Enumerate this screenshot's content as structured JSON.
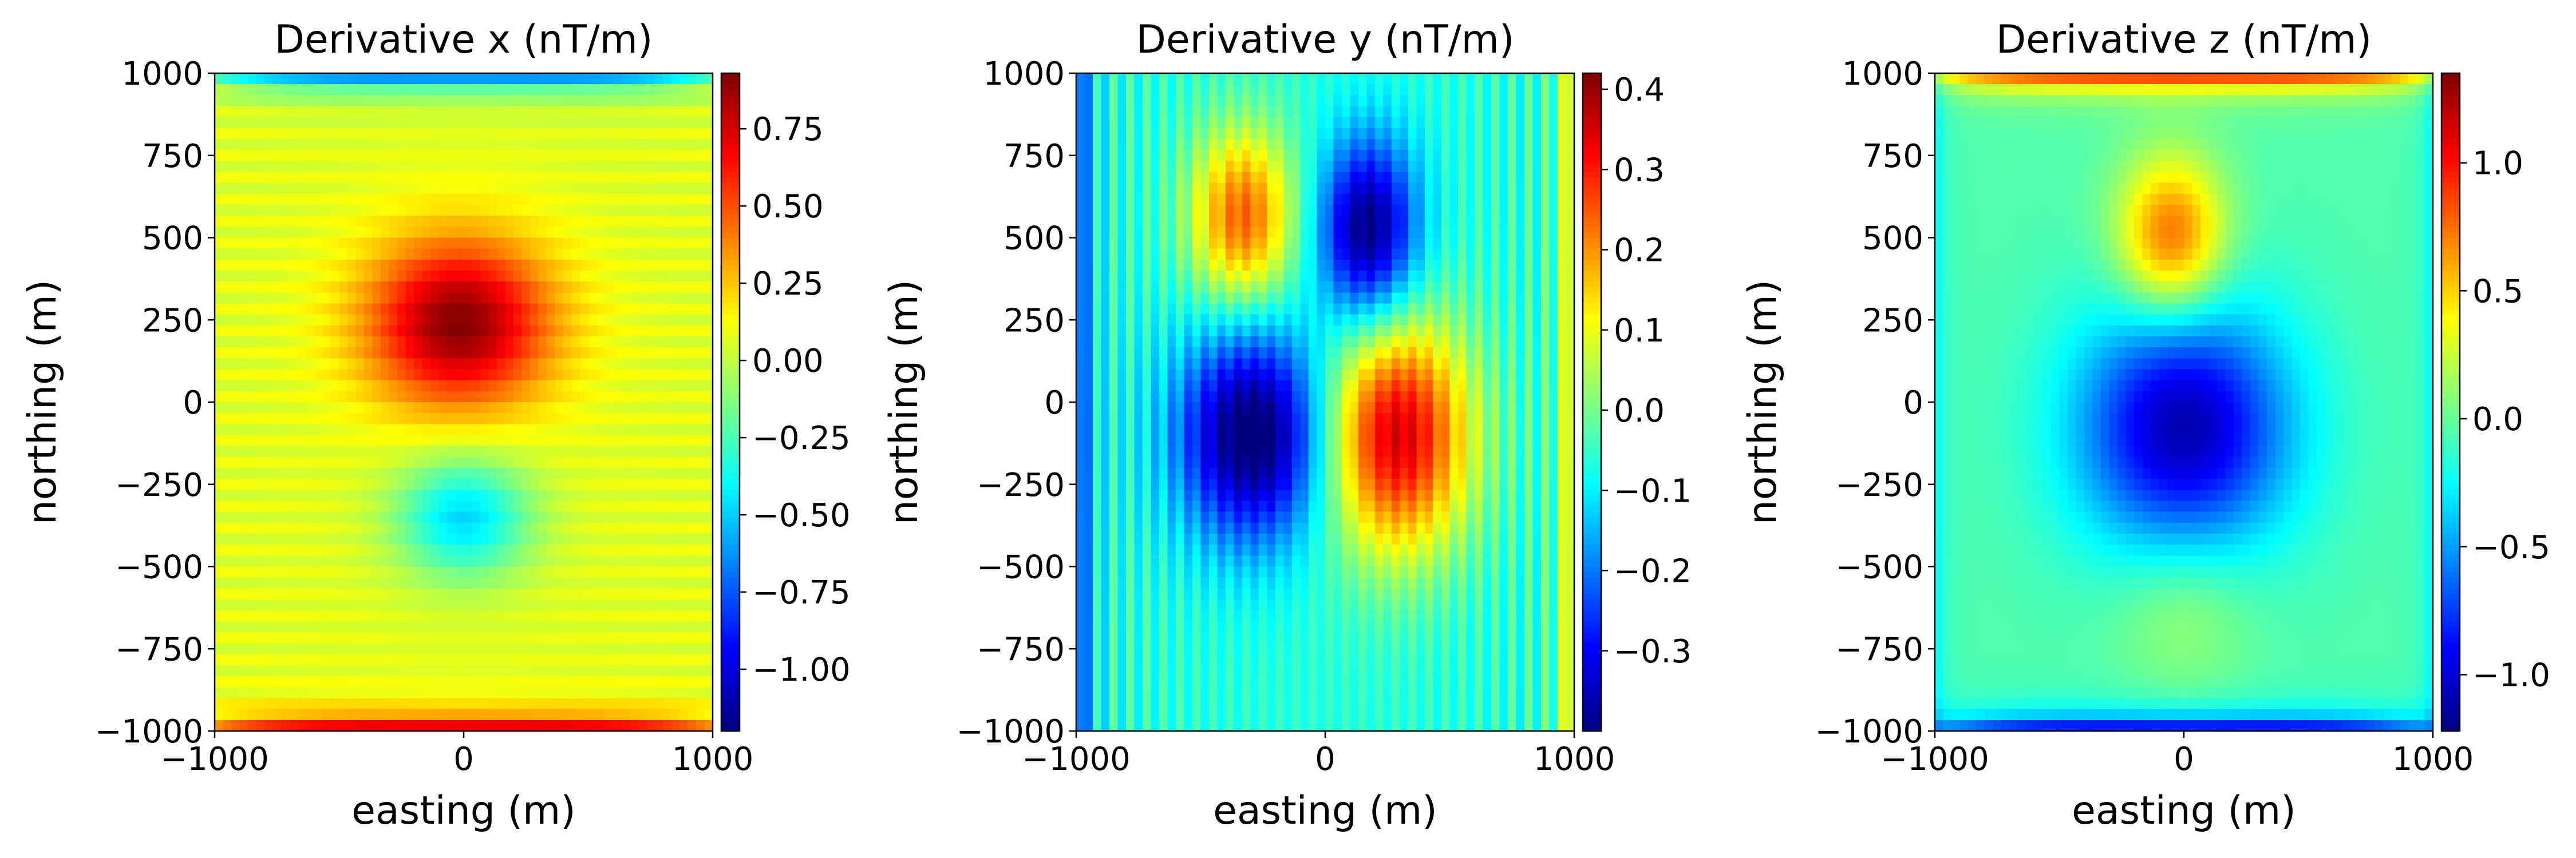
{
  "chart_data": [
    {
      "type": "heatmap",
      "title": "Derivative x (nT/m)",
      "xlabel": "easting (m)",
      "ylabel": "northing (m)",
      "xlim": [
        -1000,
        1000
      ],
      "ylim": [
        -1000,
        1000
      ],
      "xticks": [
        "−1000",
        "0",
        "1000"
      ],
      "xtick_values": [
        -1000,
        0,
        1000
      ],
      "yticks": [
        "1000",
        "750",
        "500",
        "250",
        "0",
        "−250",
        "−500",
        "−750",
        "−1000"
      ],
      "ytick_values": [
        1000,
        750,
        500,
        250,
        0,
        -250,
        -500,
        -750,
        -1000
      ],
      "colormap": "jet",
      "colorbar": {
        "range": [
          -1.2,
          0.93
        ],
        "ticks": [
          "0.75",
          "0.50",
          "0.25",
          "0.00",
          "−0.25",
          "−0.50",
          "−0.75",
          "−1.00"
        ],
        "tick_values": [
          0.75,
          0.5,
          0.25,
          0.0,
          -0.25,
          -0.5,
          -0.75,
          -1.0
        ]
      },
      "background_value": 0.07,
      "anomalies": [
        {
          "x": -20,
          "y": 240,
          "sx": 260,
          "sy": 180,
          "value": 0.85
        },
        {
          "x": 0,
          "y": -350,
          "sx": 190,
          "sy": 130,
          "value": -0.55
        }
      ],
      "edge_effects": {
        "top": -1.0,
        "bottom": 0.9,
        "left": 0,
        "right": 0,
        "stripes": "horizontal"
      }
    },
    {
      "type": "heatmap",
      "title": "Derivative y (nT/m)",
      "xlabel": "easting (m)",
      "ylabel": "northing (m)",
      "xlim": [
        -1000,
        1000
      ],
      "ylim": [
        -1000,
        1000
      ],
      "xticks": [
        "−1000",
        "0",
        "1000"
      ],
      "xtick_values": [
        -1000,
        0,
        1000
      ],
      "yticks": [
        "1000",
        "750",
        "500",
        "250",
        "0",
        "−250",
        "−500",
        "−750",
        "−1000"
      ],
      "ytick_values": [
        1000,
        750,
        500,
        250,
        0,
        -250,
        -500,
        -750,
        -1000
      ],
      "colormap": "jet",
      "colorbar": {
        "range": [
          -0.4,
          0.42
        ],
        "ticks": [
          "0.4",
          "0.3",
          "0.2",
          "0.1",
          "0.0",
          "−0.1",
          "−0.2",
          "−0.3"
        ],
        "tick_values": [
          0.4,
          0.3,
          0.2,
          0.1,
          0.0,
          -0.1,
          -0.2,
          -0.3
        ]
      },
      "background_value": -0.06,
      "anomalies": [
        {
          "x": -330,
          "y": 560,
          "sx": 150,
          "sy": 190,
          "value": 0.3
        },
        {
          "x": 170,
          "y": 520,
          "sx": 140,
          "sy": 200,
          "value": -0.35
        },
        {
          "x": -280,
          "y": -100,
          "sx": 220,
          "sy": 230,
          "value": -0.38
        },
        {
          "x": 280,
          "y": -100,
          "sx": 210,
          "sy": 250,
          "value": 0.42
        }
      ],
      "edge_effects": {
        "top": 0,
        "bottom": 0,
        "left": -0.3,
        "right": 0.3,
        "stripes": "vertical"
      }
    },
    {
      "type": "heatmap",
      "title": "Derivative z (nT/m)",
      "xlabel": "easting (m)",
      "ylabel": "northing (m)",
      "xlim": [
        -1000,
        1000
      ],
      "ylim": [
        -1000,
        1000
      ],
      "xticks": [
        "−1000",
        "0",
        "1000"
      ],
      "xtick_values": [
        -1000,
        0,
        1000
      ],
      "yticks": [
        "1000",
        "750",
        "500",
        "250",
        "0",
        "−250",
        "−500",
        "−750",
        "−1000"
      ],
      "ytick_values": [
        1000,
        750,
        500,
        250,
        0,
        -250,
        -500,
        -750,
        -1000
      ],
      "colormap": "jet",
      "colorbar": {
        "range": [
          -1.22,
          1.35
        ],
        "ticks": [
          "1.0",
          "0.5",
          "0.0",
          "−0.5",
          "−1.0"
        ],
        "tick_values": [
          1.0,
          0.5,
          0.0,
          -0.5,
          -1.0
        ]
      },
      "background_value": -0.05,
      "anomalies": [
        {
          "x": -50,
          "y": 500,
          "sx": 150,
          "sy": 170,
          "value": 0.85
        },
        {
          "x": 0,
          "y": -80,
          "sx": 300,
          "sy": 270,
          "value": -1.05
        },
        {
          "x": 0,
          "y": -620,
          "sx": 200,
          "sy": 180,
          "value": 0.22
        }
      ],
      "edge_effects": {
        "top": 1.3,
        "bottom": -1.2,
        "left": -0.25,
        "right": -0.25,
        "stripes": "none"
      }
    }
  ]
}
